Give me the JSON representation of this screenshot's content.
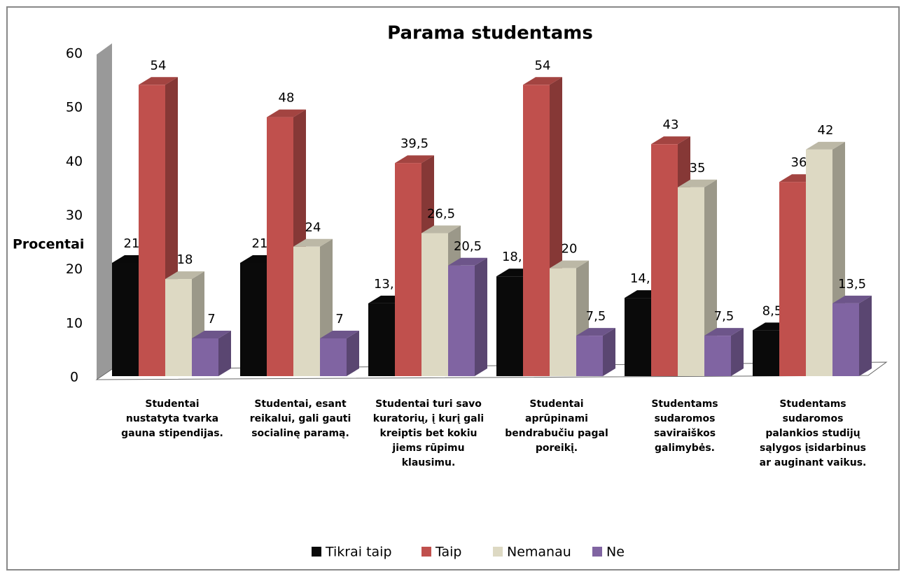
{
  "chart_data": {
    "type": "bar3d",
    "title": "Parama studentams",
    "y_label": "Procentai",
    "categories": [
      "Studentai\nnustatyta tvarka\ngauna stipendijas.",
      "Studentai, esant\nreikalui, gali gauti\nsocialinę paramą.",
      "Studentai turi savo\nkuratorių, į kurį gali\nkreiptis bet kokiu\njiems rūpimu\nklausimu.",
      "Studentai\naprūpinami\nbendrabučiu pagal\nporeikį.",
      "Studentams\nsudaromos\nsaviraiškos\ngalimybės.",
      "Studentams\nsudaromos\npalankios studijų\nsąlygos įsidarbinus\nar auginant vaikus."
    ],
    "series": [
      {
        "name": "Tikrai taip",
        "color": "#0a0a0a",
        "values": [
          21,
          21,
          13.5,
          18.5,
          14.5,
          8.5
        ],
        "value_labels": [
          "21",
          "21",
          "13,5",
          "18,5",
          "14,5",
          "8,5"
        ]
      },
      {
        "name": "Taip",
        "color": "#c0504d",
        "values": [
          54,
          48,
          39.5,
          54,
          43,
          36
        ],
        "value_labels": [
          "54",
          "48",
          "39,5",
          "54",
          "43",
          "36"
        ]
      },
      {
        "name": "Nemanau",
        "color": "#ddd9c3",
        "values": [
          18,
          24,
          26.5,
          20,
          35,
          42
        ],
        "value_labels": [
          "18",
          "24",
          "26,5",
          "20",
          "35",
          "42"
        ]
      },
      {
        "name": "Ne",
        "color": "#8064a2",
        "values": [
          7,
          7,
          20.5,
          7.5,
          7.5,
          13.5
        ],
        "value_labels": [
          "7",
          "7",
          "20,5",
          "7,5",
          "7,5",
          "13,5"
        ]
      }
    ],
    "ylim": [
      0,
      60
    ],
    "yticks": [
      0,
      10,
      20,
      30,
      40,
      50,
      60
    ],
    "legend": "bottom"
  }
}
